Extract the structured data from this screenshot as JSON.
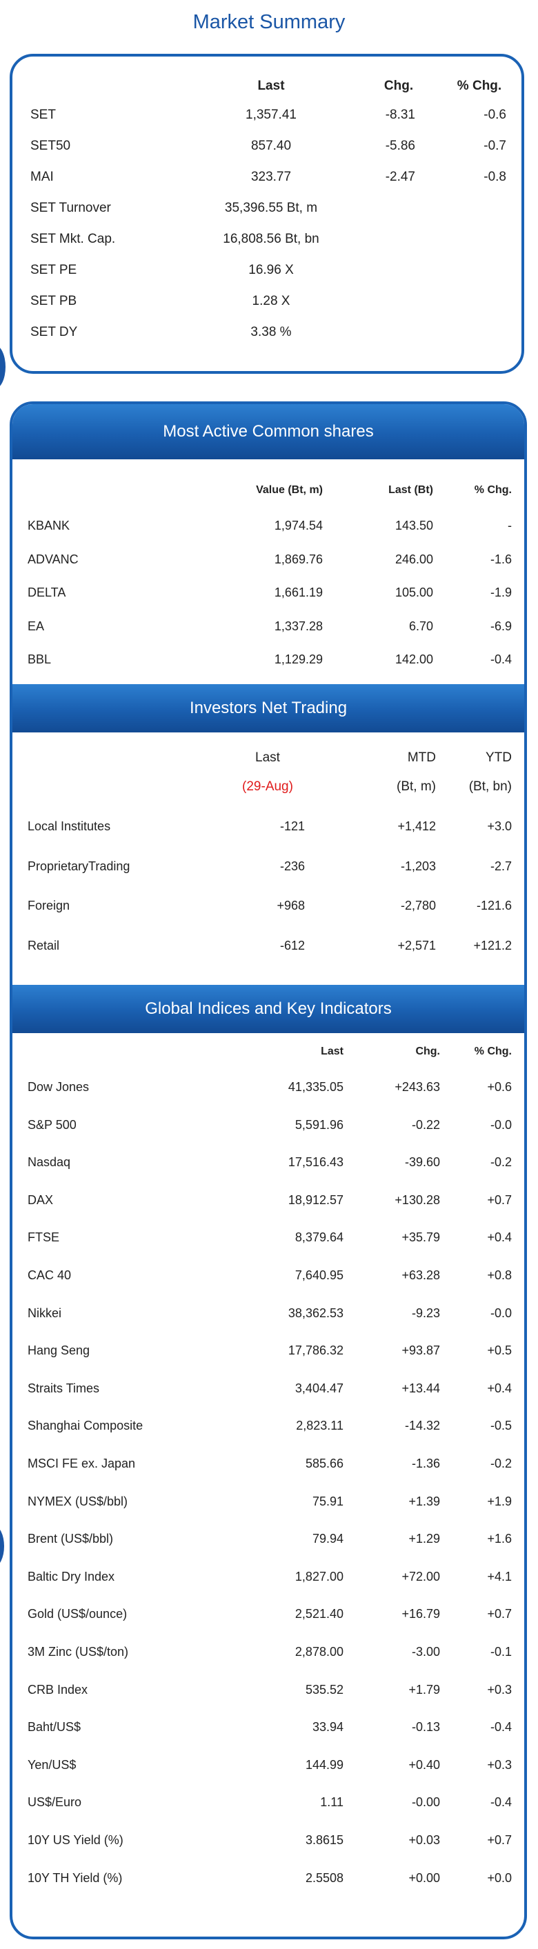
{
  "page_title": "Market Summary",
  "market_summary": {
    "headers": {
      "last": "Last",
      "chg": "Chg.",
      "pct": "% Chg."
    },
    "rows": [
      {
        "name": "SET",
        "last": "1,357.41",
        "chg": "-8.31",
        "pct": "-0.6"
      },
      {
        "name": "SET50",
        "last": "857.40",
        "chg": "-5.86",
        "pct": "-0.7"
      },
      {
        "name": "MAI",
        "last": "323.77",
        "chg": "-2.47",
        "pct": "-0.8"
      },
      {
        "name": "SET Turnover",
        "last": "35,396.55 Bt, m",
        "chg": "",
        "pct": ""
      },
      {
        "name": "SET Mkt. Cap.",
        "last": "16,808.56 Bt, bn",
        "chg": "",
        "pct": ""
      },
      {
        "name": "SET PE",
        "last": "16.96 X",
        "chg": "",
        "pct": ""
      },
      {
        "name": "SET PB",
        "last": "1.28 X",
        "chg": "",
        "pct": ""
      },
      {
        "name": "SET DY",
        "last": "3.38 %",
        "chg": "",
        "pct": ""
      }
    ]
  },
  "most_active": {
    "title": "Most Active Common shares",
    "headers": {
      "value": "Value (Bt, m)",
      "last": "Last (Bt)",
      "pct": "% Chg."
    },
    "rows": [
      {
        "name": "KBANK",
        "value": "1,974.54",
        "last": "143.50",
        "pct": "-"
      },
      {
        "name": "ADVANC",
        "value": "1,869.76",
        "last": "246.00",
        "pct": "-1.6"
      },
      {
        "name": "DELTA",
        "value": "1,661.19",
        "last": "105.00",
        "pct": "-1.9"
      },
      {
        "name": "EA",
        "value": "1,337.28",
        "last": "6.70",
        "pct": "-6.9"
      },
      {
        "name": "BBL",
        "value": "1,129.29",
        "last": "142.00",
        "pct": "-0.4"
      }
    ]
  },
  "investors": {
    "title": "Investors Net Trading",
    "headers": {
      "last": "Last",
      "mtd": "MTD",
      "ytd": "YTD"
    },
    "subheaders": {
      "date": "(29-Aug)",
      "mtd_unit": "(Bt, m)",
      "ytd_unit": "(Bt, bn)"
    },
    "rows": [
      {
        "name": "Local Institutes",
        "last": "-121",
        "mtd": "+1,412",
        "ytd": "+3.0"
      },
      {
        "name": "ProprietaryTrading",
        "last": "-236",
        "mtd": "-1,203",
        "ytd": "-2.7"
      },
      {
        "name": "Foreign",
        "last": "+968",
        "mtd": "-2,780",
        "ytd": "-121.6"
      },
      {
        "name": "Retail",
        "last": "-612",
        "mtd": "+2,571",
        "ytd": "+121.2"
      }
    ]
  },
  "global": {
    "title": "Global Indices and Key Indicators",
    "headers": {
      "last": "Last",
      "chg": "Chg.",
      "pct": "% Chg."
    },
    "rows": [
      {
        "name": "Dow Jones",
        "last": "41,335.05",
        "chg": "+243.63",
        "pct": "+0.6"
      },
      {
        "name": "S&P 500",
        "last": "5,591.96",
        "chg": "-0.22",
        "pct": "-0.0"
      },
      {
        "name": "Nasdaq",
        "last": "17,516.43",
        "chg": "-39.60",
        "pct": "-0.2"
      },
      {
        "name": "DAX",
        "last": "18,912.57",
        "chg": "+130.28",
        "pct": "+0.7"
      },
      {
        "name": "FTSE",
        "last": "8,379.64",
        "chg": "+35.79",
        "pct": "+0.4"
      },
      {
        "name": "CAC 40",
        "last": "7,640.95",
        "chg": "+63.28",
        "pct": "+0.8"
      },
      {
        "name": "Nikkei",
        "last": "38,362.53",
        "chg": "-9.23",
        "pct": "-0.0"
      },
      {
        "name": "Hang Seng",
        "last": "17,786.32",
        "chg": "+93.87",
        "pct": "+0.5"
      },
      {
        "name": "Straits Times",
        "last": "3,404.47",
        "chg": "+13.44",
        "pct": "+0.4"
      },
      {
        "name": "Shanghai Composite",
        "last": "2,823.11",
        "chg": "-14.32",
        "pct": "-0.5"
      },
      {
        "name": "MSCI FE ex. Japan",
        "last": "585.66",
        "chg": "-1.36",
        "pct": "-0.2"
      },
      {
        "name": "NYMEX (US$/bbl)",
        "last": "75.91",
        "chg": "+1.39",
        "pct": "+1.9"
      },
      {
        "name": "Brent (US$/bbl)",
        "last": "79.94",
        "chg": "+1.29",
        "pct": "+1.6"
      },
      {
        "name": "Baltic Dry Index",
        "last": "1,827.00",
        "chg": "+72.00",
        "pct": "+4.1"
      },
      {
        "name": "Gold (US$/ounce)",
        "last": "2,521.40",
        "chg": "+16.79",
        "pct": "+0.7"
      },
      {
        "name": "3M Zinc (US$/ton)",
        "last": "2,878.00",
        "chg": "-3.00",
        "pct": "-0.1"
      },
      {
        "name": "CRB Index",
        "last": "535.52",
        "chg": "+1.79",
        "pct": "+0.3"
      },
      {
        "name": "Baht/US$",
        "last": "33.94",
        "chg": "-0.13",
        "pct": "-0.4"
      },
      {
        "name": "Yen/US$",
        "last": "144.99",
        "chg": "+0.40",
        "pct": "+0.3"
      },
      {
        "name": "US$/Euro",
        "last": "1.11",
        "chg": "-0.00",
        "pct": "-0.4"
      },
      {
        "name": "10Y US Yield (%)",
        "last": "3.8615",
        "chg": "+0.03",
        "pct": "+0.7"
      },
      {
        "name": "10Y TH Yield (%)",
        "last": "2.5508",
        "chg": "+0.00",
        "pct": "+0.0"
      }
    ]
  },
  "colors": {
    "accent": "#1a56a6",
    "border": "#1a62b5",
    "negative_date": "#e01b1b"
  }
}
